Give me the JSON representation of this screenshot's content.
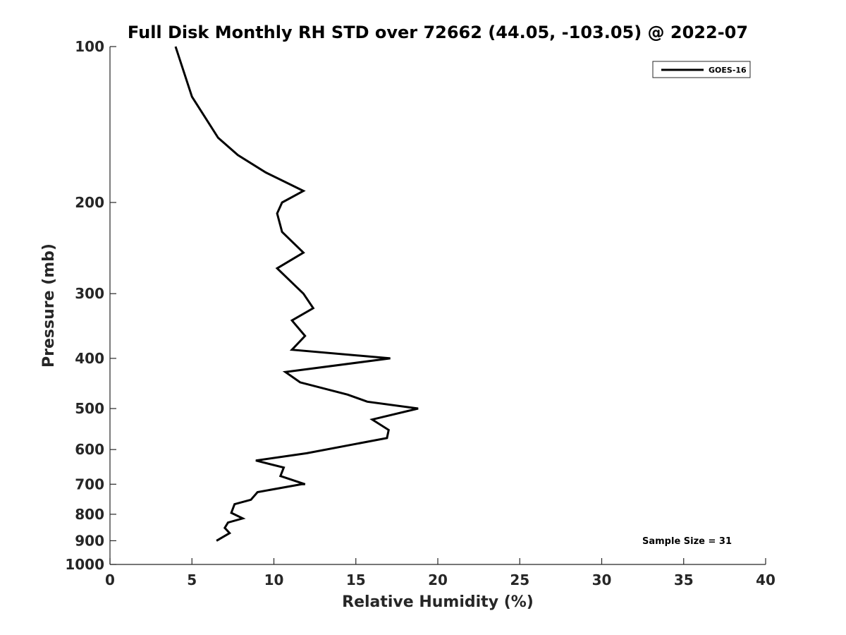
{
  "chart_data": {
    "type": "line",
    "title": "Full Disk Monthly RH STD over 72662 (44.05, -103.05) @ 2022-07",
    "xlabel": "Relative Humidity (%)",
    "ylabel": "Pressure (mb)",
    "xlim": [
      0,
      40
    ],
    "ylim": [
      1000,
      100
    ],
    "y_scale": "log",
    "y_inverted": true,
    "x_ticks": [
      "0",
      "5",
      "10",
      "15",
      "20",
      "25",
      "30",
      "35",
      "40"
    ],
    "y_ticks": [
      "100",
      "200",
      "300",
      "400",
      "500",
      "600",
      "700",
      "800",
      "900",
      "1000"
    ],
    "grid": false,
    "legend_position": "top-right",
    "annotation": "Sample Size = 31",
    "series": [
      {
        "name": "GOES-16",
        "color": "#000000",
        "points": [
          [
            4.0,
            100
          ],
          [
            5.0,
            125
          ],
          [
            6.6,
            150
          ],
          [
            7.8,
            162
          ],
          [
            9.5,
            175
          ],
          [
            11.8,
            190
          ],
          [
            10.5,
            200
          ],
          [
            10.2,
            210
          ],
          [
            10.5,
            228
          ],
          [
            11.8,
            250
          ],
          [
            10.2,
            268
          ],
          [
            11.8,
            300
          ],
          [
            12.4,
            320
          ],
          [
            11.1,
            338
          ],
          [
            11.9,
            362
          ],
          [
            11.1,
            385
          ],
          [
            17.1,
            400
          ],
          [
            10.7,
            425
          ],
          [
            11.6,
            445
          ],
          [
            14.5,
            470
          ],
          [
            15.7,
            485
          ],
          [
            18.8,
            500
          ],
          [
            16.0,
            525
          ],
          [
            17.0,
            550
          ],
          [
            16.9,
            570
          ],
          [
            14.4,
            590
          ],
          [
            12.0,
            610
          ],
          [
            8.9,
            630
          ],
          [
            10.6,
            650
          ],
          [
            10.4,
            675
          ],
          [
            11.9,
            700
          ],
          [
            11.7,
            700
          ],
          [
            9.0,
            725
          ],
          [
            8.6,
            750
          ],
          [
            7.6,
            765
          ],
          [
            7.4,
            795
          ],
          [
            8.1,
            815
          ],
          [
            7.2,
            830
          ],
          [
            7.0,
            850
          ],
          [
            7.3,
            870
          ],
          [
            6.5,
            900
          ]
        ]
      }
    ]
  }
}
